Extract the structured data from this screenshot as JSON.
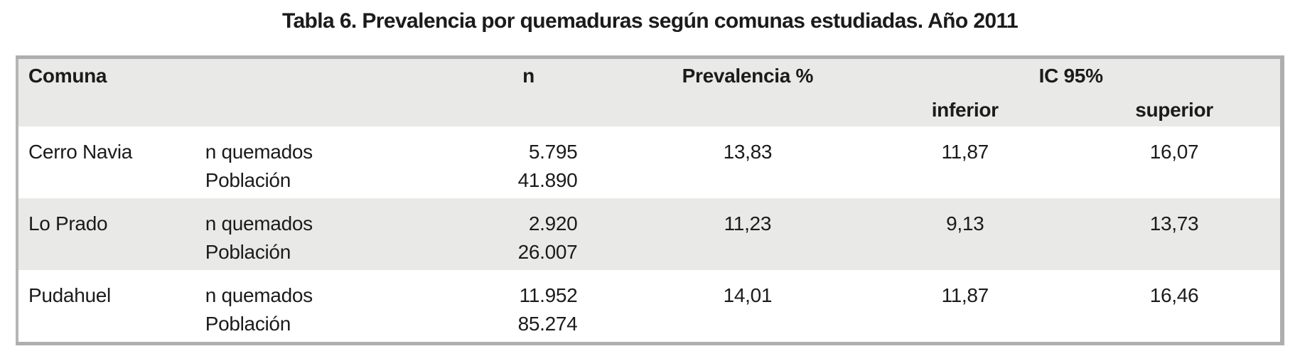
{
  "page": {
    "title": "Tabla 6. Prevalencia por quemaduras según comunas estudiadas. Año 2011"
  },
  "table": {
    "headers": {
      "comuna": "Comuna",
      "n": "n",
      "prevalencia": "Prevalencia %",
      "ic95": "IC 95%",
      "ic_inferior": "inferior",
      "ic_superior": "superior"
    },
    "rows": [
      {
        "comuna": "Cerro Navia",
        "lines": [
          {
            "label": "n quemados",
            "value": "5.795"
          },
          {
            "label": "Población",
            "value": "41.890"
          }
        ],
        "prevalencia": "13,83",
        "ic_inferior": "11,87",
        "ic_superior": "16,07"
      },
      {
        "comuna": "Lo Prado",
        "lines": [
          {
            "label": "n quemados",
            "value": "2.920"
          },
          {
            "label": "Población",
            "value": "26.007"
          }
        ],
        "prevalencia": "11,23",
        "ic_inferior": "9,13",
        "ic_superior": "13,73"
      },
      {
        "comuna": "Pudahuel",
        "lines": [
          {
            "label": "n quemados",
            "value": "11.952"
          },
          {
            "label": "Población",
            "value": "85.274"
          }
        ],
        "prevalencia": "14,01",
        "ic_inferior": "11,87",
        "ic_superior": "16,46"
      }
    ]
  },
  "colors": {
    "table_border": "#aeaeae",
    "header_bg": "#e9e9e8",
    "alt_row_bg": "#e9e9e8",
    "text": "#1b1b1b"
  }
}
